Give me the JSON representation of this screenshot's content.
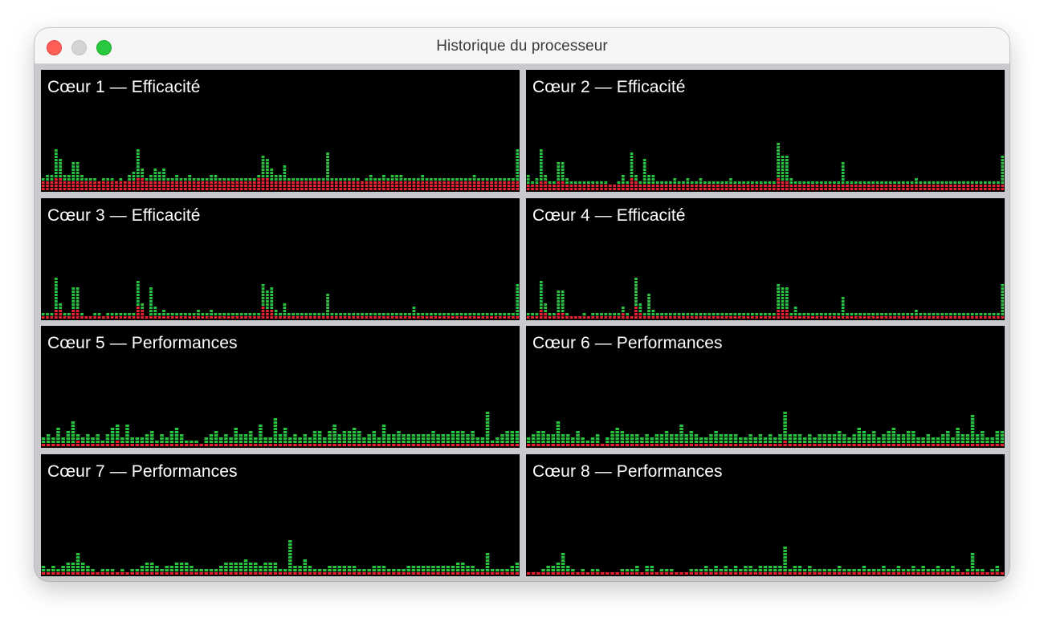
{
  "window": {
    "title": "Historique du processeur"
  },
  "colors": {
    "user": "#29c23f",
    "system": "#e8232f",
    "background": "#000000"
  },
  "cores": [
    {
      "label": "Cœur 1 — Efficacité",
      "user": [
        1,
        2,
        2,
        9,
        6,
        2,
        2,
        6,
        6,
        2,
        1,
        1,
        1,
        0,
        1,
        1,
        1,
        0,
        1,
        0,
        2,
        3,
        9,
        3,
        1,
        2,
        4,
        3,
        4,
        1,
        1,
        2,
        1,
        1,
        2,
        1,
        1,
        1,
        1,
        2,
        2,
        1,
        1,
        1,
        1,
        1,
        1,
        1,
        1,
        1,
        1,
        7,
        6,
        4,
        2,
        2,
        5,
        1,
        1,
        1,
        1,
        1,
        1,
        1,
        1,
        1,
        9,
        1,
        1,
        1,
        1,
        1,
        1,
        1,
        0,
        1,
        2,
        1,
        1,
        2,
        1,
        2,
        2,
        2,
        1,
        1,
        1,
        1,
        2,
        1,
        1,
        1,
        1,
        1,
        1,
        1,
        1,
        1,
        1,
        1,
        2,
        1,
        1,
        1,
        1,
        1,
        1,
        1,
        1,
        1,
        10
      ],
      "system": [
        3,
        3,
        3,
        4,
        4,
        3,
        3,
        3,
        3,
        3,
        3,
        3,
        3,
        3,
        3,
        3,
        3,
        3,
        3,
        3,
        3,
        3,
        4,
        4,
        3,
        3,
        3,
        3,
        3,
        3,
        3,
        3,
        3,
        3,
        3,
        3,
        3,
        3,
        3,
        3,
        3,
        3,
        3,
        3,
        3,
        3,
        3,
        3,
        3,
        3,
        4,
        4,
        4,
        3,
        3,
        3,
        3,
        3,
        3,
        3,
        3,
        3,
        3,
        3,
        3,
        3,
        3,
        3,
        3,
        3,
        3,
        3,
        3,
        3,
        3,
        3,
        3,
        3,
        3,
        3,
        3,
        3,
        3,
        3,
        3,
        3,
        3,
        3,
        3,
        3,
        3,
        3,
        3,
        3,
        3,
        3,
        3,
        3,
        3,
        3,
        3,
        3,
        3,
        3,
        3,
        3,
        3,
        3,
        3,
        3,
        3
      ]
    },
    {
      "label": "Cœur 2 — Efficacité",
      "user": [
        3,
        1,
        2,
        10,
        2,
        1,
        1,
        6,
        6,
        2,
        1,
        1,
        1,
        1,
        1,
        1,
        1,
        1,
        1,
        0,
        0,
        1,
        3,
        1,
        8,
        2,
        1,
        8,
        3,
        3,
        1,
        1,
        1,
        1,
        2,
        1,
        1,
        2,
        1,
        1,
        2,
        1,
        1,
        1,
        1,
        1,
        1,
        2,
        1,
        1,
        1,
        1,
        1,
        1,
        1,
        1,
        1,
        1,
        11,
        8,
        8,
        2,
        1,
        1,
        1,
        1,
        1,
        1,
        1,
        1,
        1,
        1,
        1,
        7,
        1,
        1,
        1,
        1,
        1,
        1,
        1,
        1,
        1,
        1,
        1,
        1,
        1,
        1,
        1,
        1,
        2,
        1,
        1,
        1,
        1,
        1,
        1,
        1,
        1,
        1,
        1,
        1,
        1,
        1,
        1,
        1,
        1,
        1,
        1,
        1,
        9
      ],
      "system": [
        2,
        2,
        2,
        3,
        3,
        2,
        2,
        3,
        3,
        2,
        2,
        2,
        2,
        2,
        2,
        2,
        2,
        2,
        2,
        2,
        2,
        2,
        2,
        2,
        4,
        3,
        2,
        2,
        2,
        2,
        2,
        2,
        2,
        2,
        2,
        2,
        2,
        2,
        2,
        2,
        2,
        2,
        2,
        2,
        2,
        2,
        2,
        2,
        2,
        2,
        2,
        2,
        2,
        2,
        2,
        2,
        2,
        2,
        4,
        3,
        3,
        2,
        2,
        2,
        2,
        2,
        2,
        2,
        2,
        2,
        2,
        2,
        2,
        2,
        2,
        2,
        2,
        2,
        2,
        2,
        2,
        2,
        2,
        2,
        2,
        2,
        2,
        2,
        2,
        2,
        2,
        2,
        2,
        2,
        2,
        2,
        2,
        2,
        2,
        2,
        2,
        2,
        2,
        2,
        2,
        2,
        2,
        2,
        2,
        2,
        2
      ]
    },
    {
      "label": "Cœur 3 — Efficacité",
      "user": [
        1,
        1,
        1,
        10,
        2,
        1,
        1,
        7,
        7,
        1,
        0,
        0,
        1,
        1,
        0,
        1,
        1,
        1,
        1,
        1,
        1,
        1,
        8,
        2,
        0,
        9,
        3,
        1,
        2,
        1,
        1,
        1,
        1,
        1,
        1,
        1,
        2,
        1,
        1,
        2,
        1,
        1,
        1,
        1,
        1,
        1,
        1,
        1,
        1,
        1,
        1,
        7,
        6,
        7,
        2,
        1,
        4,
        1,
        1,
        1,
        1,
        1,
        1,
        1,
        1,
        1,
        7,
        1,
        1,
        1,
        1,
        1,
        1,
        1,
        1,
        1,
        1,
        1,
        1,
        1,
        1,
        1,
        1,
        1,
        1,
        1,
        3,
        1,
        1,
        1,
        1,
        1,
        1,
        1,
        1,
        1,
        1,
        1,
        1,
        1,
        1,
        1,
        1,
        1,
        1,
        1,
        1,
        1,
        1,
        1,
        10
      ],
      "system": [
        1,
        1,
        1,
        3,
        3,
        1,
        1,
        3,
        3,
        1,
        1,
        1,
        1,
        1,
        1,
        1,
        1,
        1,
        1,
        1,
        1,
        1,
        4,
        3,
        1,
        1,
        1,
        1,
        1,
        1,
        1,
        1,
        1,
        1,
        1,
        1,
        1,
        1,
        1,
        1,
        1,
        1,
        1,
        1,
        1,
        1,
        1,
        1,
        1,
        1,
        1,
        4,
        3,
        3,
        1,
        1,
        1,
        1,
        1,
        1,
        1,
        1,
        1,
        1,
        1,
        1,
        1,
        1,
        1,
        1,
        1,
        1,
        1,
        1,
        1,
        1,
        1,
        1,
        1,
        1,
        1,
        1,
        1,
        1,
        1,
        1,
        1,
        1,
        1,
        1,
        1,
        1,
        1,
        1,
        1,
        1,
        1,
        1,
        1,
        1,
        1,
        1,
        1,
        1,
        1,
        1,
        1,
        1,
        1,
        1,
        1
      ]
    },
    {
      "label": "Cœur 4 — Efficacité",
      "user": [
        1,
        1,
        1,
        9,
        3,
        1,
        1,
        7,
        7,
        1,
        0,
        0,
        0,
        1,
        0,
        1,
        1,
        1,
        1,
        1,
        1,
        1,
        2,
        1,
        0,
        9,
        3,
        1,
        7,
        2,
        1,
        1,
        1,
        1,
        1,
        1,
        1,
        1,
        1,
        1,
        1,
        1,
        1,
        1,
        1,
        1,
        1,
        1,
        1,
        1,
        1,
        1,
        1,
        1,
        1,
        1,
        1,
        1,
        8,
        7,
        7,
        1,
        3,
        1,
        1,
        1,
        1,
        1,
        1,
        1,
        1,
        1,
        1,
        6,
        1,
        1,
        1,
        1,
        1,
        1,
        1,
        1,
        1,
        1,
        1,
        1,
        1,
        1,
        1,
        1,
        2,
        1,
        1,
        1,
        1,
        1,
        1,
        1,
        1,
        1,
        1,
        1,
        1,
        1,
        1,
        1,
        1,
        1,
        1,
        1,
        10
      ],
      "system": [
        1,
        1,
        1,
        3,
        2,
        1,
        1,
        2,
        2,
        1,
        1,
        1,
        1,
        1,
        1,
        1,
        1,
        1,
        1,
        1,
        1,
        1,
        2,
        1,
        1,
        4,
        2,
        1,
        1,
        1,
        1,
        1,
        1,
        1,
        1,
        1,
        1,
        1,
        1,
        1,
        1,
        1,
        1,
        1,
        1,
        1,
        1,
        1,
        1,
        1,
        1,
        1,
        1,
        1,
        1,
        1,
        1,
        1,
        3,
        3,
        3,
        1,
        1,
        1,
        1,
        1,
        1,
        1,
        1,
        1,
        1,
        1,
        1,
        1,
        1,
        1,
        1,
        1,
        1,
        1,
        1,
        1,
        1,
        1,
        1,
        1,
        1,
        1,
        1,
        1,
        1,
        1,
        1,
        1,
        1,
        1,
        1,
        1,
        1,
        1,
        1,
        1,
        1,
        1,
        1,
        1,
        1,
        1,
        1,
        1,
        1
      ]
    },
    {
      "label": "Cœur 5 — Performances",
      "user": [
        2,
        3,
        2,
        5,
        2,
        4,
        7,
        2,
        2,
        3,
        2,
        3,
        1,
        3,
        5,
        5,
        2,
        6,
        2,
        2,
        2,
        3,
        4,
        1,
        3,
        2,
        4,
        5,
        3,
        1,
        1,
        1,
        0,
        2,
        3,
        4,
        2,
        3,
        2,
        5,
        3,
        3,
        4,
        2,
        6,
        2,
        2,
        8,
        3,
        5,
        2,
        3,
        2,
        3,
        2,
        4,
        4,
        2,
        4,
        6,
        3,
        4,
        4,
        5,
        4,
        2,
        3,
        4,
        2,
        6,
        3,
        3,
        4,
        3,
        3,
        3,
        3,
        3,
        3,
        4,
        3,
        3,
        3,
        4,
        4,
        4,
        3,
        4,
        2,
        2,
        10,
        1,
        2,
        3,
        4,
        4,
        4
      ],
      "system": [
        1,
        1,
        1,
        1,
        1,
        1,
        1,
        2,
        1,
        1,
        1,
        1,
        1,
        1,
        1,
        2,
        1,
        1,
        1,
        1,
        1,
        1,
        1,
        1,
        1,
        1,
        1,
        1,
        1,
        1,
        1,
        1,
        1,
        1,
        1,
        1,
        1,
        1,
        1,
        1,
        1,
        1,
        1,
        1,
        1,
        1,
        1,
        1,
        1,
        1,
        1,
        1,
        1,
        1,
        1,
        1,
        1,
        1,
        1,
        1,
        1,
        1,
        1,
        1,
        1,
        1,
        1,
        1,
        1,
        1,
        1,
        1,
        1,
        1,
        1,
        1,
        1,
        1,
        1,
        1,
        1,
        1,
        1,
        1,
        1,
        1,
        1,
        1,
        1,
        1,
        1,
        1,
        1,
        1,
        1,
        1,
        1
      ]
    },
    {
      "label": "Cœur 6 — Performances",
      "user": [
        2,
        3,
        4,
        4,
        3,
        3,
        7,
        3,
        3,
        2,
        4,
        2,
        1,
        2,
        3,
        0,
        2,
        4,
        5,
        4,
        3,
        3,
        3,
        2,
        3,
        2,
        3,
        3,
        4,
        3,
        3,
        6,
        3,
        4,
        3,
        2,
        2,
        3,
        4,
        3,
        3,
        3,
        3,
        2,
        2,
        3,
        2,
        3,
        2,
        3,
        2,
        3,
        9,
        3,
        3,
        3,
        2,
        3,
        2,
        3,
        3,
        3,
        3,
        4,
        3,
        2,
        3,
        5,
        4,
        3,
        4,
        2,
        3,
        4,
        5,
        3,
        3,
        4,
        4,
        2,
        2,
        3,
        2,
        2,
        3,
        4,
        2,
        5,
        3,
        3,
        9,
        3,
        4,
        2,
        2,
        4,
        4
      ],
      "system": [
        1,
        1,
        1,
        1,
        1,
        1,
        1,
        1,
        1,
        1,
        1,
        1,
        1,
        1,
        1,
        1,
        1,
        1,
        1,
        1,
        1,
        1,
        1,
        1,
        1,
        1,
        1,
        1,
        1,
        1,
        1,
        1,
        1,
        1,
        1,
        1,
        1,
        1,
        1,
        1,
        1,
        1,
        1,
        1,
        1,
        1,
        1,
        1,
        1,
        1,
        1,
        1,
        2,
        1,
        1,
        1,
        1,
        1,
        1,
        1,
        1,
        1,
        1,
        1,
        1,
        1,
        1,
        1,
        1,
        1,
        1,
        1,
        1,
        1,
        1,
        1,
        1,
        1,
        1,
        1,
        1,
        1,
        1,
        1,
        1,
        1,
        1,
        1,
        1,
        1,
        1,
        1,
        1,
        1,
        1,
        1,
        1
      ]
    },
    {
      "label": "Cœur 7 — Performances",
      "user": [
        2,
        1,
        2,
        1,
        2,
        3,
        3,
        6,
        3,
        2,
        1,
        0,
        1,
        1,
        1,
        0,
        1,
        0,
        1,
        1,
        2,
        3,
        3,
        2,
        1,
        2,
        2,
        3,
        3,
        3,
        2,
        1,
        1,
        1,
        1,
        1,
        2,
        3,
        3,
        3,
        3,
        4,
        3,
        3,
        2,
        3,
        3,
        3,
        1,
        1,
        10,
        2,
        2,
        4,
        2,
        1,
        1,
        1,
        2,
        2,
        2,
        2,
        2,
        2,
        1,
        1,
        1,
        2,
        2,
        2,
        1,
        1,
        1,
        1,
        2,
        2,
        2,
        2,
        2,
        2,
        2,
        2,
        2,
        2,
        3,
        3,
        2,
        2,
        1,
        1,
        6,
        1,
        1,
        1,
        1,
        2,
        3
      ],
      "system": [
        1,
        1,
        1,
        1,
        1,
        1,
        1,
        1,
        1,
        1,
        1,
        1,
        1,
        1,
        1,
        1,
        1,
        1,
        1,
        1,
        1,
        1,
        1,
        1,
        1,
        1,
        1,
        1,
        1,
        1,
        1,
        1,
        1,
        1,
        1,
        1,
        1,
        1,
        1,
        1,
        1,
        1,
        1,
        1,
        1,
        1,
        1,
        1,
        1,
        1,
        1,
        1,
        1,
        1,
        1,
        1,
        1,
        1,
        1,
        1,
        1,
        1,
        1,
        1,
        1,
        1,
        1,
        1,
        1,
        1,
        1,
        1,
        1,
        1,
        1,
        1,
        1,
        1,
        1,
        1,
        1,
        1,
        1,
        1,
        1,
        1,
        1,
        1,
        1,
        1,
        1,
        1,
        1,
        1,
        1,
        1,
        1
      ]
    },
    {
      "label": "Cœur 8 — Performances",
      "user": [
        0,
        0,
        0,
        1,
        2,
        2,
        3,
        6,
        2,
        1,
        0,
        1,
        0,
        1,
        1,
        0,
        0,
        0,
        0,
        1,
        1,
        1,
        2,
        0,
        2,
        2,
        0,
        1,
        1,
        1,
        0,
        0,
        0,
        1,
        1,
        1,
        2,
        1,
        2,
        1,
        2,
        1,
        2,
        1,
        2,
        2,
        1,
        2,
        2,
        2,
        2,
        2,
        8,
        1,
        2,
        2,
        1,
        2,
        1,
        1,
        1,
        1,
        1,
        2,
        1,
        1,
        1,
        1,
        2,
        1,
        1,
        1,
        2,
        1,
        1,
        2,
        1,
        1,
        2,
        1,
        2,
        1,
        1,
        2,
        1,
        1,
        2,
        1,
        0,
        1,
        6,
        1,
        1,
        0,
        1,
        2,
        0
      ],
      "system": [
        1,
        1,
        1,
        1,
        1,
        1,
        1,
        1,
        1,
        1,
        1,
        1,
        1,
        1,
        1,
        1,
        1,
        1,
        1,
        1,
        1,
        1,
        1,
        1,
        1,
        1,
        1,
        1,
        1,
        1,
        1,
        1,
        1,
        1,
        1,
        1,
        1,
        1,
        1,
        1,
        1,
        1,
        1,
        1,
        1,
        1,
        1,
        1,
        1,
        1,
        1,
        1,
        1,
        1,
        1,
        1,
        1,
        1,
        1,
        1,
        1,
        1,
        1,
        1,
        1,
        1,
        1,
        1,
        1,
        1,
        1,
        1,
        1,
        1,
        1,
        1,
        1,
        1,
        1,
        1,
        1,
        1,
        1,
        1,
        1,
        1,
        1,
        1,
        1,
        1,
        1,
        1,
        1,
        1,
        1,
        1,
        1
      ]
    }
  ]
}
